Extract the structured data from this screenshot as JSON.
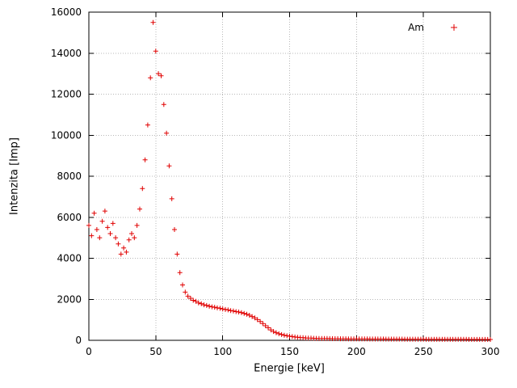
{
  "chart_data": {
    "type": "scatter",
    "title": "",
    "xlabel": "Energie [keV]",
    "ylabel": "Intenzita [Imp]",
    "xlim": [
      0,
      300
    ],
    "ylim": [
      0,
      16000
    ],
    "xticks": [
      0,
      50,
      100,
      150,
      200,
      250,
      300
    ],
    "yticks": [
      0,
      2000,
      4000,
      6000,
      8000,
      10000,
      12000,
      14000,
      16000
    ],
    "grid": true,
    "legend_position": "top-right-inside",
    "marker": "plus",
    "marker_color": "#e00000",
    "series": [
      {
        "name": "Am",
        "x_start": 0,
        "x_step": 2,
        "y": [
          5600,
          5100,
          6200,
          5400,
          5000,
          5800,
          6300,
          5500,
          5200,
          5700,
          5000,
          4700,
          4200,
          4500,
          4300,
          4900,
          5200,
          5000,
          5600,
          6400,
          7400,
          8800,
          10500,
          12800,
          15500,
          14100,
          13000,
          12900,
          11500,
          10100,
          8500,
          6900,
          5400,
          4200,
          3300,
          2700,
          2350,
          2150,
          2050,
          1950,
          1900,
          1820,
          1780,
          1730,
          1700,
          1660,
          1630,
          1610,
          1580,
          1560,
          1530,
          1500,
          1480,
          1450,
          1430,
          1400,
          1380,
          1350,
          1310,
          1270,
          1220,
          1160,
          1090,
          1010,
          920,
          820,
          710,
          610,
          510,
          430,
          370,
          320,
          280,
          250,
          220,
          200,
          180,
          160,
          145,
          135,
          125,
          115,
          110,
          105,
          100,
          95,
          92,
          90,
          88,
          85,
          83,
          80,
          79,
          78,
          76,
          75,
          74,
          72,
          71,
          70,
          69,
          68,
          68,
          67,
          66,
          65,
          65,
          64,
          63,
          63,
          62,
          61,
          61,
          60,
          60,
          59,
          58,
          58,
          57,
          57,
          56,
          56,
          55,
          55,
          54,
          54,
          53,
          53,
          52,
          52,
          51,
          51,
          50,
          50,
          49,
          49,
          48,
          48,
          47,
          47,
          46,
          46,
          45,
          45,
          44,
          44,
          43,
          43,
          42,
          42,
          41
        ]
      }
    ]
  }
}
